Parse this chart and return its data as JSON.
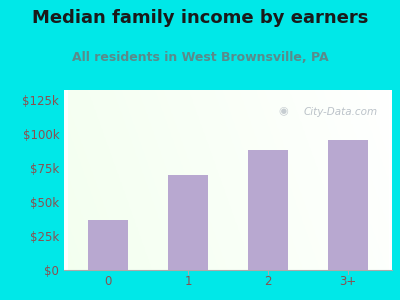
{
  "title": "Median family income by earners",
  "subtitle": "All residents in West Brownsville, PA",
  "categories": [
    "0",
    "1",
    "2",
    "3+"
  ],
  "values": [
    37000,
    70000,
    88000,
    95000
  ],
  "bar_color": "#b8a8d0",
  "background_outer": "#00e8e8",
  "title_color": "#1a1a1a",
  "subtitle_color": "#5a8a8a",
  "tick_color": "#8a5050",
  "ytick_labels": [
    "$0",
    "$25k",
    "$50k",
    "$75k",
    "$100k",
    "$125k"
  ],
  "ytick_values": [
    0,
    25000,
    50000,
    75000,
    100000,
    125000
  ],
  "ylim": [
    0,
    132000
  ],
  "title_fontsize": 13,
  "subtitle_fontsize": 9,
  "tick_fontsize": 8.5,
  "watermark_text": "City-Data.com",
  "watermark_color": "#b0b8c0"
}
